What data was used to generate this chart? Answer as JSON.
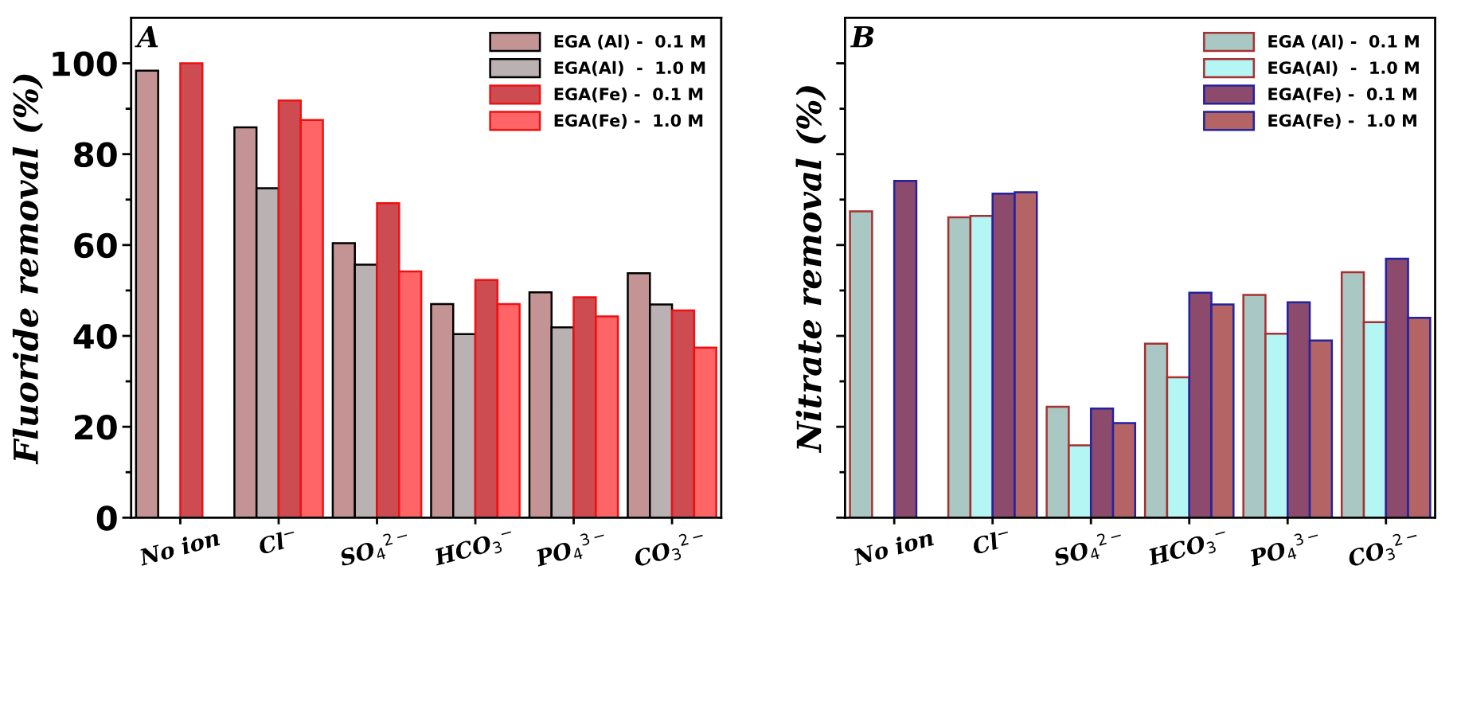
{
  "chart_data": [
    {
      "type": "bar",
      "ylabel": "Fluoride removal (%)",
      "annotations": [
        "A"
      ],
      "categories": [
        "No ion",
        "Cl$^{−}$",
        "SO$_{4}$$^{2−}$",
        "HCO$_{3}$$^{−}$",
        "PO$_{4}$$^{3−}$",
        "CO$_{3}$$^{2−}$"
      ],
      "ylim": [
        0,
        110
      ],
      "yticks": [
        0,
        20,
        40,
        60,
        80,
        100
      ],
      "grid": false,
      "legend": "top right",
      "series": [
        {
          "name": "EGA (Al) -  0.1 M",
          "color": "#c49494",
          "values": [
            98.4,
            85.9,
            60.4,
            47.0,
            49.6,
            53.8
          ]
        },
        {
          "name": "EGA(Al)  -  1.0 M",
          "color": "#bab2b2",
          "values": [
            null,
            72.5,
            55.7,
            40.4,
            41.9,
            46.9
          ]
        },
        {
          "name": "EGA(Fe) -  0.1 M",
          "color": "#cc4c52",
          "values": [
            100,
            91.8,
            69.2,
            52.3,
            48.5,
            45.6
          ]
        },
        {
          "name": "EGA(Fe) -  1.0 M",
          "color": "#ff6466",
          "values": [
            null,
            87.5,
            54.2,
            47.0,
            44.3,
            37.4
          ]
        }
      ]
    },
    {
      "type": "bar",
      "ylabel": "Nitrate removal (%)",
      "annotations": [
        "B"
      ],
      "categories": [
        "No ion",
        "Cl$^{−}$",
        "SO$_{4}$$^{2−}$",
        "HCO$_{3}$$^{−}$",
        "PO$_{4}$$^{3−}$",
        "CO$_{3}$$^{2−}$"
      ],
      "ylim": [
        0,
        110
      ],
      "yticks": [
        0,
        20,
        40,
        60,
        80,
        100
      ],
      "tick_labels": "x",
      "grid": false,
      "legend": "top right",
      "series": [
        {
          "name": "EGA (Al) -  0.1 M",
          "color": "#a9c7c3",
          "values": [
            67.4,
            66.1,
            24.4,
            38.3,
            49.0,
            54.0
          ]
        },
        {
          "name": "EGA(Al)  -  1.0 M",
          "color": "#b4f6f4",
          "values": [
            null,
            66.4,
            15.9,
            30.9,
            40.5,
            43.0
          ]
        },
        {
          "name": "EGA(Fe) -  0.1 M",
          "color": "#8c4a6c",
          "values": [
            74.1,
            71.3,
            24.0,
            49.5,
            47.4,
            57.0
          ]
        },
        {
          "name": "EGA(Fe) -  1.0 M",
          "color": "#b46464",
          "values": [
            null,
            71.6,
            20.8,
            46.9,
            39.0,
            44.0
          ]
        }
      ]
    }
  ]
}
